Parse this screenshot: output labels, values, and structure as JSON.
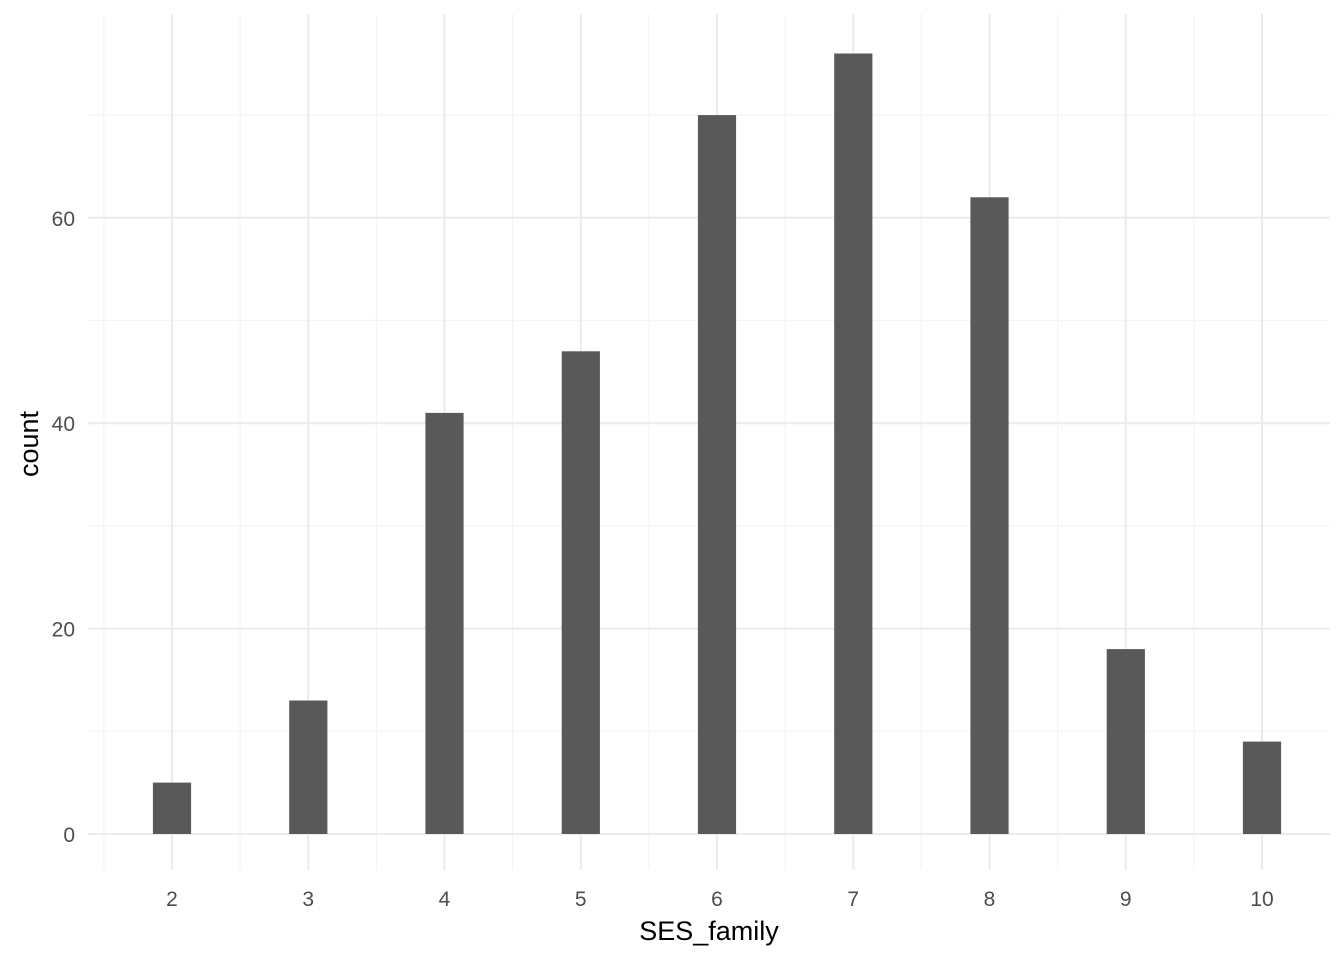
{
  "chart_data": {
    "type": "bar",
    "title": "",
    "xlabel": "SES_family",
    "ylabel": "count",
    "x": [
      2,
      3,
      4,
      5,
      6,
      7,
      8,
      9,
      10
    ],
    "values": [
      5,
      13,
      41,
      47,
      70,
      76,
      62,
      18,
      9
    ],
    "bar_width": 0.28,
    "xlim": [
      1.5,
      10.3
    ],
    "ylim": [
      0,
      80
    ],
    "x_ticks": [
      2,
      3,
      4,
      5,
      6,
      7,
      8,
      9,
      10
    ],
    "y_ticks": [
      0,
      20,
      40,
      60
    ],
    "y_minor_ticks": [
      10,
      30,
      50,
      70
    ],
    "grid": true,
    "legend": "none",
    "colors": {
      "bar": "#595959",
      "grid_major": "#ebebeb",
      "grid_minor": "#f4f4f4",
      "tick_text": "#4d4d4d",
      "title_text": "#000000"
    }
  }
}
